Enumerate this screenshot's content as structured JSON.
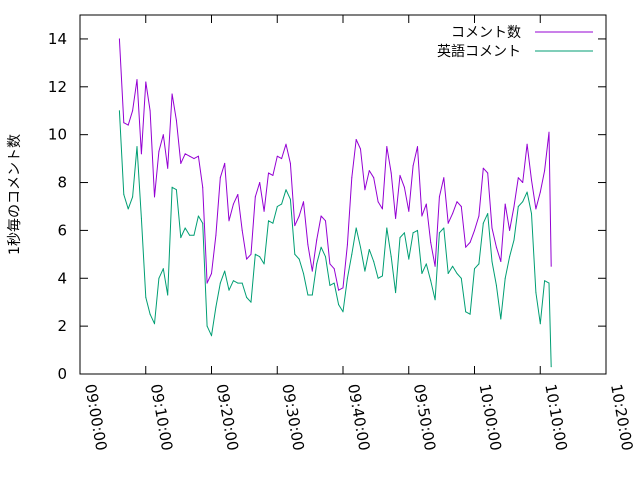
{
  "chart_data": {
    "type": "line",
    "title": "",
    "xlabel": "",
    "ylabel": "1秒毎のコメント数",
    "xlim": [
      "09:00:00",
      "10:20:00"
    ],
    "ylim": [
      0,
      15
    ],
    "y_ticks": [
      0,
      2,
      4,
      6,
      8,
      10,
      12,
      14
    ],
    "x_ticks": [
      "09:00:00",
      "09:10:00",
      "09:20:00",
      "09:30:00",
      "09:40:00",
      "09:50:00",
      "10:00:00",
      "10:10:00",
      "10:20:00"
    ],
    "grid": false,
    "legend": "top-right",
    "series": [
      {
        "name": "コメント数",
        "color": "#9400d3",
        "points": [
          [
            "09:06:00",
            14.0
          ],
          [
            "09:06:40",
            10.5
          ],
          [
            "09:07:20",
            10.4
          ],
          [
            "09:08:00",
            11.0
          ],
          [
            "09:08:40",
            12.3
          ],
          [
            "09:09:20",
            9.2
          ],
          [
            "09:10:00",
            12.2
          ],
          [
            "09:10:40",
            11.0
          ],
          [
            "09:11:20",
            7.4
          ],
          [
            "09:12:00",
            9.3
          ],
          [
            "09:12:40",
            10.0
          ],
          [
            "09:13:20",
            8.6
          ],
          [
            "09:14:00",
            11.7
          ],
          [
            "09:14:40",
            10.6
          ],
          [
            "09:15:20",
            8.8
          ],
          [
            "09:16:00",
            9.2
          ],
          [
            "09:16:40",
            9.1
          ],
          [
            "09:17:20",
            9.0
          ],
          [
            "09:18:00",
            9.1
          ],
          [
            "09:18:40",
            7.8
          ],
          [
            "09:19:20",
            3.8
          ],
          [
            "09:20:00",
            4.2
          ],
          [
            "09:20:40",
            5.8
          ],
          [
            "09:21:20",
            8.2
          ],
          [
            "09:22:00",
            8.8
          ],
          [
            "09:22:40",
            6.4
          ],
          [
            "09:23:20",
            7.1
          ],
          [
            "09:24:00",
            7.5
          ],
          [
            "09:24:40",
            6.0
          ],
          [
            "09:25:20",
            4.8
          ],
          [
            "09:26:00",
            5.0
          ],
          [
            "09:26:40",
            7.4
          ],
          [
            "09:27:20",
            8.0
          ],
          [
            "09:28:00",
            6.8
          ],
          [
            "09:28:40",
            8.4
          ],
          [
            "09:29:20",
            8.3
          ],
          [
            "09:30:00",
            9.1
          ],
          [
            "09:30:40",
            9.0
          ],
          [
            "09:31:20",
            9.6
          ],
          [
            "09:32:00",
            8.8
          ],
          [
            "09:32:40",
            6.2
          ],
          [
            "09:33:20",
            6.6
          ],
          [
            "09:34:00",
            7.2
          ],
          [
            "09:34:40",
            5.4
          ],
          [
            "09:35:20",
            4.3
          ],
          [
            "09:36:00",
            5.6
          ],
          [
            "09:36:40",
            6.6
          ],
          [
            "09:37:20",
            6.4
          ],
          [
            "09:38:00",
            4.6
          ],
          [
            "09:38:40",
            4.4
          ],
          [
            "09:39:20",
            3.5
          ],
          [
            "09:40:00",
            3.6
          ],
          [
            "09:40:40",
            5.4
          ],
          [
            "09:41:20",
            8.2
          ],
          [
            "09:42:00",
            9.8
          ],
          [
            "09:42:40",
            9.4
          ],
          [
            "09:43:20",
            7.7
          ],
          [
            "09:44:00",
            8.5
          ],
          [
            "09:44:40",
            8.2
          ],
          [
            "09:45:20",
            7.2
          ],
          [
            "09:46:00",
            6.9
          ],
          [
            "09:46:40",
            9.5
          ],
          [
            "09:47:20",
            8.4
          ],
          [
            "09:48:00",
            6.5
          ],
          [
            "09:48:40",
            8.3
          ],
          [
            "09:49:20",
            7.8
          ],
          [
            "09:50:00",
            6.8
          ],
          [
            "09:50:40",
            8.7
          ],
          [
            "09:51:20",
            9.5
          ],
          [
            "09:52:00",
            6.6
          ],
          [
            "09:52:40",
            7.1
          ],
          [
            "09:53:20",
            5.5
          ],
          [
            "09:54:00",
            4.5
          ],
          [
            "09:54:40",
            7.4
          ],
          [
            "09:55:20",
            8.2
          ],
          [
            "09:56:00",
            6.3
          ],
          [
            "09:56:40",
            6.7
          ],
          [
            "09:57:20",
            7.2
          ],
          [
            "09:58:00",
            7.0
          ],
          [
            "09:58:40",
            5.3
          ],
          [
            "09:59:20",
            5.5
          ],
          [
            "10:00:00",
            6.0
          ],
          [
            "10:00:40",
            6.6
          ],
          [
            "10:01:20",
            8.6
          ],
          [
            "10:02:00",
            8.4
          ],
          [
            "10:02:40",
            6.1
          ],
          [
            "10:03:20",
            5.3
          ],
          [
            "10:04:00",
            4.7
          ],
          [
            "10:04:40",
            7.1
          ],
          [
            "10:05:20",
            6.0
          ],
          [
            "10:06:00",
            7.0
          ],
          [
            "10:06:40",
            8.2
          ],
          [
            "10:07:20",
            8.0
          ],
          [
            "10:08:00",
            9.6
          ],
          [
            "10:08:40",
            8.1
          ],
          [
            "10:09:20",
            6.9
          ],
          [
            "10:10:00",
            7.6
          ],
          [
            "10:10:40",
            8.5
          ],
          [
            "10:11:20",
            10.1
          ],
          [
            "10:11:40",
            4.5
          ]
        ]
      },
      {
        "name": "英語コメント",
        "color": "#009e73",
        "points": [
          [
            "09:06:00",
            11.0
          ],
          [
            "09:06:40",
            7.5
          ],
          [
            "09:07:20",
            6.9
          ],
          [
            "09:08:00",
            7.4
          ],
          [
            "09:08:40",
            9.5
          ],
          [
            "09:09:20",
            6.5
          ],
          [
            "09:10:00",
            3.2
          ],
          [
            "09:10:40",
            2.5
          ],
          [
            "09:11:20",
            2.1
          ],
          [
            "09:12:00",
            4.0
          ],
          [
            "09:12:40",
            4.4
          ],
          [
            "09:13:20",
            3.3
          ],
          [
            "09:14:00",
            7.8
          ],
          [
            "09:14:40",
            7.7
          ],
          [
            "09:15:20",
            5.7
          ],
          [
            "09:16:00",
            6.1
          ],
          [
            "09:16:40",
            5.8
          ],
          [
            "09:17:20",
            5.8
          ],
          [
            "09:18:00",
            6.6
          ],
          [
            "09:18:40",
            6.3
          ],
          [
            "09:19:20",
            2.0
          ],
          [
            "09:20:00",
            1.6
          ],
          [
            "09:20:40",
            2.8
          ],
          [
            "09:21:20",
            3.8
          ],
          [
            "09:22:00",
            4.3
          ],
          [
            "09:22:40",
            3.5
          ],
          [
            "09:23:20",
            3.9
          ],
          [
            "09:24:00",
            3.8
          ],
          [
            "09:24:40",
            3.8
          ],
          [
            "09:25:20",
            3.2
          ],
          [
            "09:26:00",
            3.0
          ],
          [
            "09:26:40",
            5.0
          ],
          [
            "09:27:20",
            4.9
          ],
          [
            "09:28:00",
            4.6
          ],
          [
            "09:28:40",
            6.4
          ],
          [
            "09:29:20",
            6.3
          ],
          [
            "09:30:00",
            7.0
          ],
          [
            "09:30:40",
            7.1
          ],
          [
            "09:31:20",
            7.7
          ],
          [
            "09:32:00",
            7.3
          ],
          [
            "09:32:40",
            5.0
          ],
          [
            "09:33:20",
            4.8
          ],
          [
            "09:34:00",
            4.2
          ],
          [
            "09:34:40",
            3.3
          ],
          [
            "09:35:20",
            3.3
          ],
          [
            "09:36:00",
            4.6
          ],
          [
            "09:36:40",
            5.3
          ],
          [
            "09:37:20",
            4.9
          ],
          [
            "09:38:00",
            3.7
          ],
          [
            "09:38:40",
            3.8
          ],
          [
            "09:39:20",
            2.9
          ],
          [
            "09:40:00",
            2.6
          ],
          [
            "09:40:40",
            4.0
          ],
          [
            "09:41:20",
            5.0
          ],
          [
            "09:42:00",
            6.1
          ],
          [
            "09:42:40",
            5.3
          ],
          [
            "09:43:20",
            4.3
          ],
          [
            "09:44:00",
            5.2
          ],
          [
            "09:44:40",
            4.7
          ],
          [
            "09:45:20",
            4.0
          ],
          [
            "09:46:00",
            4.1
          ],
          [
            "09:46:40",
            6.1
          ],
          [
            "09:47:20",
            4.9
          ],
          [
            "09:48:00",
            3.4
          ],
          [
            "09:48:40",
            5.7
          ],
          [
            "09:49:20",
            5.9
          ],
          [
            "09:50:00",
            4.8
          ],
          [
            "09:50:40",
            5.9
          ],
          [
            "09:51:20",
            6.0
          ],
          [
            "09:52:00",
            4.2
          ],
          [
            "09:52:40",
            4.6
          ],
          [
            "09:53:20",
            3.9
          ],
          [
            "09:54:00",
            3.1
          ],
          [
            "09:54:40",
            5.9
          ],
          [
            "09:55:20",
            6.1
          ],
          [
            "09:56:00",
            4.2
          ],
          [
            "09:56:40",
            4.5
          ],
          [
            "09:57:20",
            4.2
          ],
          [
            "09:58:00",
            4.0
          ],
          [
            "09:58:40",
            2.6
          ],
          [
            "09:59:20",
            2.5
          ],
          [
            "10:00:00",
            4.4
          ],
          [
            "10:00:40",
            4.6
          ],
          [
            "10:01:20",
            6.3
          ],
          [
            "10:02:00",
            6.7
          ],
          [
            "10:02:40",
            4.7
          ],
          [
            "10:03:20",
            3.7
          ],
          [
            "10:04:00",
            2.3
          ],
          [
            "10:04:40",
            4.0
          ],
          [
            "10:05:20",
            4.9
          ],
          [
            "10:06:00",
            5.6
          ],
          [
            "10:06:40",
            7.0
          ],
          [
            "10:07:20",
            7.2
          ],
          [
            "10:08:00",
            7.6
          ],
          [
            "10:08:40",
            6.7
          ],
          [
            "10:09:20",
            3.4
          ],
          [
            "10:10:00",
            2.1
          ],
          [
            "10:10:40",
            3.9
          ],
          [
            "10:11:20",
            3.8
          ],
          [
            "10:11:40",
            0.3
          ]
        ]
      }
    ]
  }
}
